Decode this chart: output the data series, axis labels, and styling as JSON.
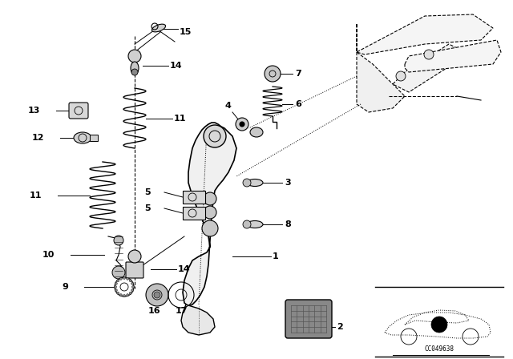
{
  "bg_color": "#ffffff",
  "fg_color": "#000000",
  "diagram_code": "CC049638",
  "figsize": [
    6.4,
    4.48
  ],
  "dpi": 100
}
